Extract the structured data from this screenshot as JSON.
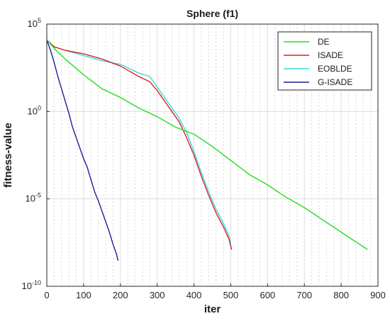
{
  "chart_data": {
    "type": "line",
    "title": "Sphere (f1)",
    "xlabel": "iter",
    "ylabel": "fitness-value",
    "x_scale": "linear",
    "y_scale": "log",
    "xlim": [
      0,
      900
    ],
    "ylim_exponent": [
      -10,
      5
    ],
    "x_ticks": [
      "0",
      "100",
      "200",
      "300",
      "400",
      "500",
      "600",
      "700",
      "800",
      "900"
    ],
    "y_ticks": [
      {
        "base": "10",
        "exp": "5"
      },
      {
        "base": "10",
        "exp": "0"
      },
      {
        "base": "10",
        "exp": "-5"
      },
      {
        "base": "10",
        "exp": "-10"
      }
    ],
    "grid": true,
    "legend_position": "top-right",
    "series": [
      {
        "name": "DE",
        "color": "#22dd22",
        "x": [
          0,
          25,
          50,
          100,
          150,
          200,
          250,
          300,
          350,
          400,
          450,
          500,
          550,
          600,
          650,
          700,
          750,
          800,
          850,
          872
        ],
        "y_exp": [
          4.1,
          3.5,
          3.0,
          2.1,
          1.3,
          0.8,
          0.2,
          -0.3,
          -0.9,
          -1.3,
          -2.0,
          -2.8,
          -3.6,
          -4.2,
          -4.9,
          -5.5,
          -6.2,
          -6.9,
          -7.6,
          -7.9
        ]
      },
      {
        "name": "ISADE",
        "color": "#dd2222",
        "x": [
          0,
          20,
          50,
          100,
          150,
          200,
          250,
          280,
          300,
          320,
          340,
          360,
          380,
          400,
          420,
          440,
          460,
          480,
          495,
          502
        ],
        "y_exp": [
          4.1,
          3.7,
          3.5,
          3.3,
          3.0,
          2.6,
          2.0,
          1.7,
          1.2,
          0.6,
          0.0,
          -0.6,
          -1.5,
          -2.5,
          -3.7,
          -4.8,
          -5.8,
          -6.6,
          -7.3,
          -7.9
        ]
      },
      {
        "name": "EOBLDE",
        "color": "#33dddd",
        "x": [
          0,
          20,
          50,
          100,
          150,
          200,
          250,
          280,
          300,
          320,
          340,
          360,
          380,
          400,
          420,
          440,
          460,
          480,
          495,
          502
        ],
        "y_exp": [
          4.1,
          3.7,
          3.5,
          3.2,
          2.9,
          2.7,
          2.2,
          2.0,
          1.4,
          0.8,
          0.2,
          -0.4,
          -1.2,
          -2.3,
          -3.5,
          -4.6,
          -5.6,
          -6.4,
          -7.1,
          -7.9
        ]
      },
      {
        "name": "G-ISADE",
        "color": "#1f1f99",
        "x": [
          0,
          10,
          20,
          30,
          40,
          50,
          60,
          70,
          80,
          90,
          100,
          110,
          120,
          130,
          140,
          150,
          160,
          170,
          180,
          190,
          193,
          195
        ],
        "y_exp": [
          4.1,
          3.5,
          2.8,
          2.0,
          1.3,
          0.6,
          -0.1,
          -0.9,
          -1.5,
          -2.1,
          -2.7,
          -3.2,
          -3.9,
          -4.6,
          -5.1,
          -5.7,
          -6.3,
          -6.9,
          -7.6,
          -8.2,
          -8.5,
          -8.5
        ]
      }
    ]
  }
}
